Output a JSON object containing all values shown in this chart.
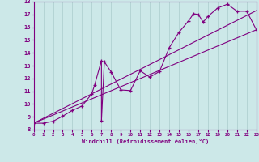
{
  "xlabel": "Windchill (Refroidissement éolien,°C)",
  "bg_color": "#cce8e8",
  "line_color": "#800080",
  "grid_color": "#aacccc",
  "x_min": 0,
  "x_max": 23,
  "y_min": 8,
  "y_max": 18,
  "line1_x": [
    0,
    1,
    2,
    3,
    4,
    5,
    6,
    6.3,
    7.0,
    7.0,
    7.3,
    8,
    9,
    10,
    11,
    12,
    13,
    14,
    15,
    16,
    16.5,
    17,
    17.5,
    18,
    19,
    20,
    21,
    22,
    23
  ],
  "line1_y": [
    8.5,
    8.5,
    8.65,
    9.05,
    9.5,
    9.85,
    10.8,
    11.5,
    13.4,
    8.7,
    13.3,
    12.5,
    11.1,
    11.05,
    12.6,
    12.1,
    12.55,
    14.4,
    15.6,
    16.5,
    17.05,
    17.0,
    16.4,
    16.85,
    17.5,
    17.8,
    17.25,
    17.25,
    15.8
  ],
  "line2_x": [
    0,
    23
  ],
  "line2_y": [
    8.5,
    15.8
  ],
  "line3_x": [
    0,
    23
  ],
  "line3_y": [
    8.5,
    17.3
  ],
  "x_ticks": [
    0,
    1,
    2,
    3,
    4,
    5,
    6,
    7,
    8,
    9,
    10,
    11,
    12,
    13,
    14,
    15,
    16,
    17,
    18,
    19,
    20,
    21,
    22,
    23
  ],
  "y_ticks": [
    8,
    9,
    10,
    11,
    12,
    13,
    14,
    15,
    16,
    17,
    18
  ]
}
